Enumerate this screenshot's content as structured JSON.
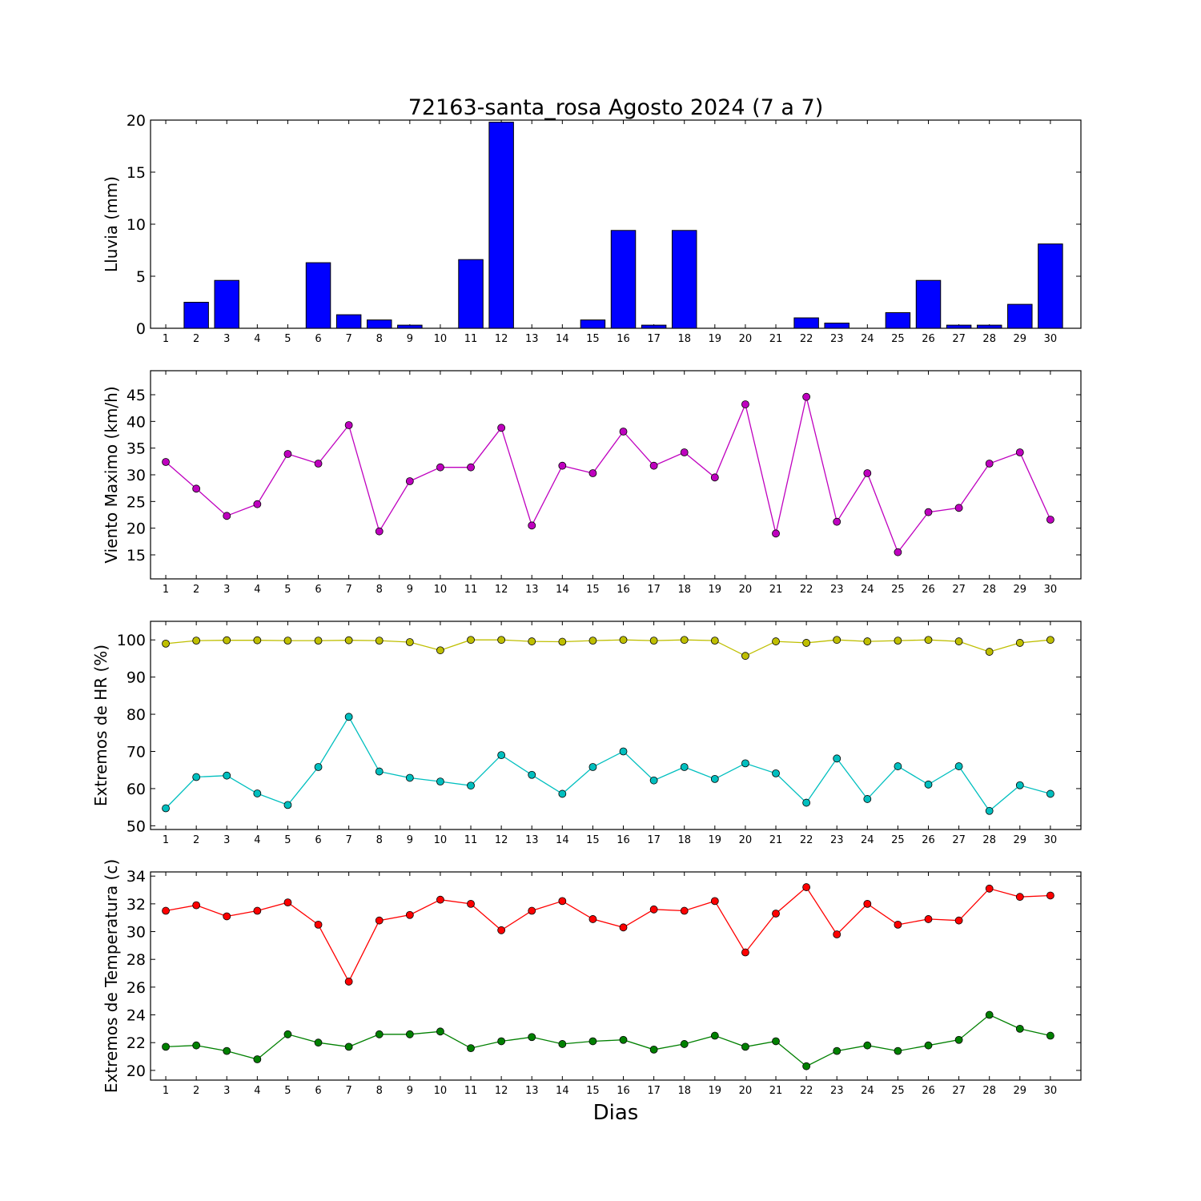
{
  "title": "72163-santa_rosa Agosto 2024  (7 a 7)",
  "xlabel": "Dias",
  "colors": {
    "rain_bar": "#0000ff",
    "wind": "#bf00bf",
    "hr_max": "#bfbf00",
    "hr_min": "#00bfbf",
    "temp_max": "#ff0000",
    "temp_min": "#008000"
  },
  "chart_data": [
    {
      "type": "bar",
      "ylabel": "Lluvia (mm)",
      "ylim": [
        0,
        20
      ],
      "yticks": [
        0,
        5,
        10,
        15,
        20
      ],
      "x": [
        1,
        2,
        3,
        4,
        5,
        6,
        7,
        8,
        9,
        10,
        11,
        12,
        13,
        14,
        15,
        16,
        17,
        18,
        19,
        20,
        21,
        22,
        23,
        24,
        25,
        26,
        27,
        28,
        29,
        30
      ],
      "series": [
        {
          "color": "#0000ff",
          "values": [
            0,
            2.5,
            4.6,
            0,
            0,
            6.3,
            1.3,
            0.8,
            0.3,
            0,
            6.6,
            19.8,
            0,
            0,
            0.8,
            9.4,
            0.3,
            9.4,
            0,
            0,
            0,
            1.0,
            0.5,
            0,
            1.5,
            4.6,
            0.3,
            0.3,
            2.3,
            8.1
          ]
        }
      ]
    },
    {
      "type": "line",
      "ylabel": "Viento Maximo (km/h)",
      "ylim": [
        10.5,
        49.5
      ],
      "yticks": [
        15,
        20,
        25,
        30,
        35,
        40,
        45
      ],
      "x": [
        1,
        2,
        3,
        4,
        5,
        6,
        7,
        8,
        9,
        10,
        11,
        12,
        13,
        14,
        15,
        16,
        17,
        18,
        19,
        20,
        21,
        22,
        23,
        24,
        25,
        26,
        27,
        28,
        29,
        30
      ],
      "series": [
        {
          "color": "#bf00bf",
          "values": [
            32.4,
            27.4,
            22.3,
            24.5,
            33.9,
            32.1,
            39.3,
            19.4,
            28.8,
            31.4,
            31.4,
            38.8,
            20.5,
            31.7,
            30.3,
            38.1,
            31.7,
            34.2,
            29.5,
            43.2,
            19.0,
            44.6,
            21.2,
            30.3,
            15.5,
            23.0,
            23.8,
            32.1,
            34.2,
            21.6
          ]
        }
      ]
    },
    {
      "type": "line",
      "ylabel": "Extremos de HR (%)",
      "ylim": [
        49,
        105
      ],
      "yticks": [
        50,
        60,
        70,
        80,
        90,
        100
      ],
      "x": [
        1,
        2,
        3,
        4,
        5,
        6,
        7,
        8,
        9,
        10,
        11,
        12,
        13,
        14,
        15,
        16,
        17,
        18,
        19,
        20,
        21,
        22,
        23,
        24,
        25,
        26,
        27,
        28,
        29,
        30
      ],
      "series": [
        {
          "color": "#bfbf00",
          "values": [
            99.0,
            99.8,
            99.9,
            99.9,
            99.8,
            99.8,
            99.9,
            99.8,
            99.4,
            97.2,
            100,
            100,
            99.6,
            99.5,
            99.8,
            100,
            99.8,
            100,
            99.8,
            95.7,
            99.6,
            99.2,
            100,
            99.6,
            99.8,
            100,
            99.6,
            96.8,
            99.2,
            100
          ]
        },
        {
          "color": "#00bfbf",
          "values": [
            54.7,
            63.1,
            63.5,
            58.7,
            55.6,
            65.8,
            79.3,
            64.6,
            62.9,
            61.9,
            60.8,
            69.0,
            63.7,
            58.6,
            65.8,
            70.0,
            62.2,
            65.8,
            62.6,
            66.8,
            64.1,
            56.2,
            68.1,
            57.2,
            66.0,
            61.1,
            66.0,
            54.0,
            60.9,
            58.6
          ]
        }
      ]
    },
    {
      "type": "line",
      "ylabel": "Extremos de Temperatura (c)",
      "ylim": [
        19.3,
        34.3
      ],
      "yticks": [
        20,
        22,
        24,
        26,
        28,
        30,
        32,
        34
      ],
      "x": [
        1,
        2,
        3,
        4,
        5,
        6,
        7,
        8,
        9,
        10,
        11,
        12,
        13,
        14,
        15,
        16,
        17,
        18,
        19,
        20,
        21,
        22,
        23,
        24,
        25,
        26,
        27,
        28,
        29,
        30
      ],
      "series": [
        {
          "color": "#ff0000",
          "values": [
            31.5,
            31.9,
            31.1,
            31.5,
            32.1,
            30.5,
            26.4,
            30.8,
            31.2,
            32.3,
            32.0,
            30.1,
            31.5,
            32.2,
            30.9,
            30.3,
            31.6,
            31.5,
            32.2,
            28.5,
            31.3,
            33.2,
            29.8,
            32.0,
            30.5,
            30.9,
            30.8,
            33.1,
            32.5,
            32.6
          ]
        },
        {
          "color": "#008000",
          "values": [
            21.7,
            21.8,
            21.4,
            20.8,
            22.6,
            22.0,
            21.7,
            22.6,
            22.6,
            22.8,
            21.6,
            22.1,
            22.4,
            21.9,
            22.1,
            22.2,
            21.5,
            21.9,
            22.5,
            21.7,
            22.1,
            20.3,
            21.4,
            21.8,
            21.4,
            21.8,
            22.2,
            24.0,
            23.0,
            22.5
          ]
        }
      ]
    }
  ]
}
